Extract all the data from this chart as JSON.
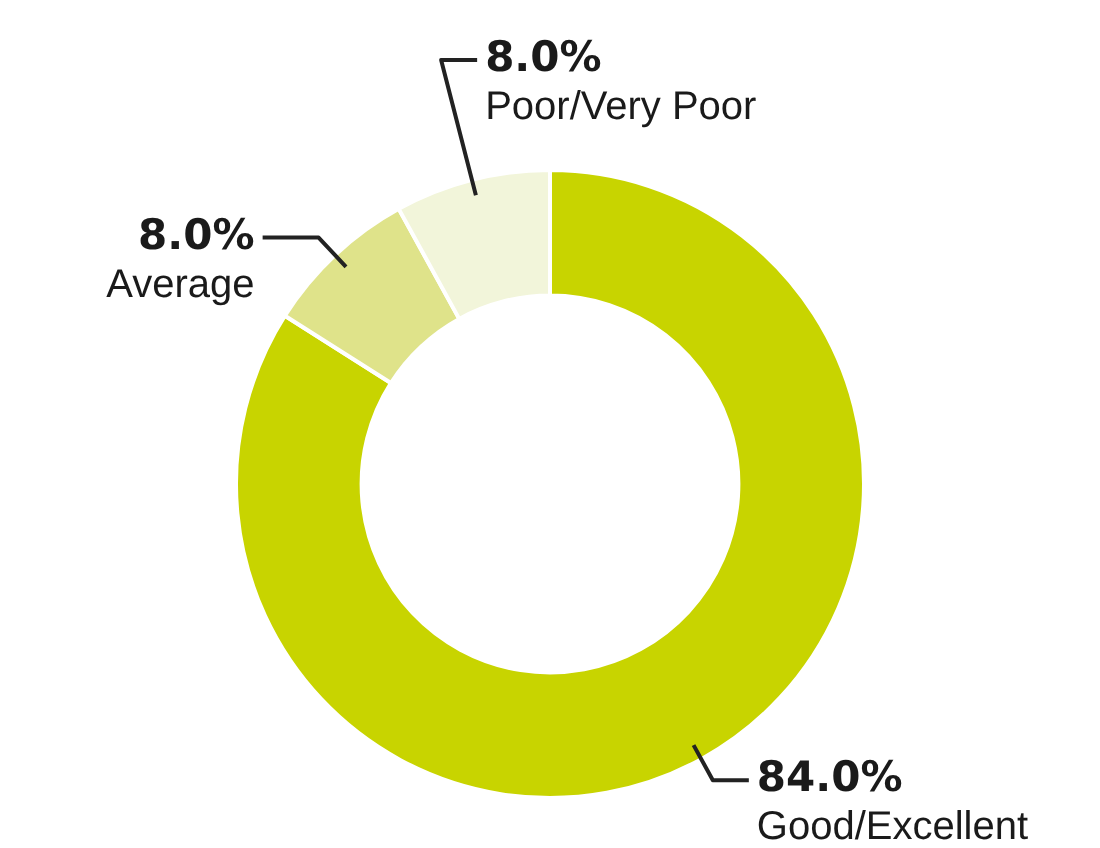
{
  "chart_data": {
    "type": "donut",
    "categories": [
      "Good/Excellent",
      "Average",
      "Poor/Very Poor"
    ],
    "values": [
      84.0,
      8.0,
      8.0
    ],
    "value_labels": [
      "84.0%",
      "8.0%",
      "8.0%"
    ],
    "colors": [
      "#c8d400",
      "#dfe38a",
      "#f2f5da"
    ],
    "legend": false
  }
}
